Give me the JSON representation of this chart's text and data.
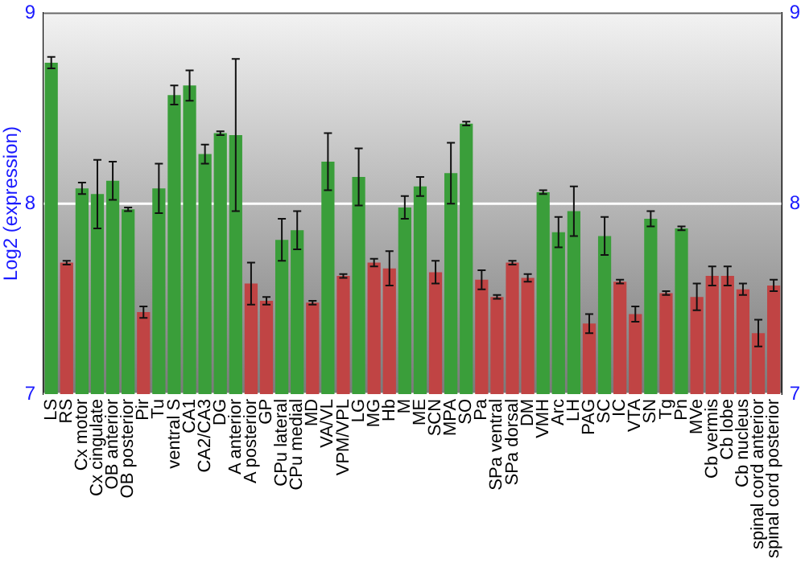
{
  "chart_data": {
    "type": "bar",
    "ylabel": "Log2 (expression)",
    "categories": [
      "LS",
      "RS",
      "Cx motor",
      "Cx cingulate",
      "OB anterior",
      "OB posterior",
      "Pir",
      "Tu",
      "ventral S",
      "CA1",
      "CA2/CA3",
      "DG",
      "A anterior",
      "A posterior",
      "GP",
      "CPu lateral",
      "CPu medial",
      "MD",
      "VA/VL",
      "VPM/VPL",
      "LG",
      "MG",
      "Hb",
      "M",
      "ME",
      "SCN",
      "MPA",
      "SO",
      "Pa",
      "SPa ventral",
      "SPa dorsal",
      "DM",
      "VMH",
      "Arc",
      "LH",
      "PAG",
      "SC",
      "IC",
      "VTA",
      "SN",
      "Tg",
      "Pn",
      "MVe",
      "Cb vermis",
      "Cb lobe",
      "Cb nucleus",
      "spinal cord anterior",
      "spinal cord posterior"
    ],
    "values": [
      8.74,
      7.69,
      8.08,
      8.05,
      8.12,
      7.97,
      7.43,
      8.08,
      8.57,
      8.62,
      8.26,
      8.37,
      8.36,
      7.58,
      7.49,
      7.81,
      7.86,
      7.48,
      8.22,
      7.62,
      8.14,
      7.69,
      7.66,
      7.98,
      8.09,
      7.64,
      8.16,
      8.42,
      7.6,
      7.51,
      7.69,
      7.61,
      8.06,
      7.85,
      7.96,
      7.37,
      7.83,
      7.59,
      7.42,
      7.92,
      7.53,
      7.87,
      7.51,
      7.62,
      7.62,
      7.55,
      7.32,
      7.57
    ],
    "errors": [
      0.03,
      0.01,
      0.03,
      0.18,
      0.1,
      0.01,
      0.03,
      0.13,
      0.05,
      0.08,
      0.05,
      0.01,
      0.4,
      0.11,
      0.02,
      0.11,
      0.1,
      0.01,
      0.15,
      0.01,
      0.15,
      0.02,
      0.09,
      0.06,
      0.05,
      0.06,
      0.16,
      0.01,
      0.05,
      0.01,
      0.01,
      0.02,
      0.01,
      0.08,
      0.13,
      0.05,
      0.1,
      0.01,
      0.04,
      0.04,
      0.01,
      0.01,
      0.07,
      0.05,
      0.05,
      0.03,
      0.07,
      0.03
    ],
    "colors": [
      "#3a9e3a",
      "#c04444",
      "#3a9e3a",
      "#3a9e3a",
      "#3a9e3a",
      "#3a9e3a",
      "#c04444",
      "#3a9e3a",
      "#3a9e3a",
      "#3a9e3a",
      "#3a9e3a",
      "#3a9e3a",
      "#3a9e3a",
      "#c04444",
      "#c04444",
      "#3a9e3a",
      "#3a9e3a",
      "#c04444",
      "#3a9e3a",
      "#c04444",
      "#3a9e3a",
      "#c04444",
      "#c04444",
      "#3a9e3a",
      "#3a9e3a",
      "#c04444",
      "#3a9e3a",
      "#3a9e3a",
      "#c04444",
      "#c04444",
      "#c04444",
      "#c04444",
      "#3a9e3a",
      "#3a9e3a",
      "#3a9e3a",
      "#c04444",
      "#3a9e3a",
      "#c04444",
      "#c04444",
      "#3a9e3a",
      "#c04444",
      "#3a9e3a",
      "#c04444",
      "#c04444",
      "#c04444",
      "#c04444",
      "#c04444",
      "#c04444"
    ],
    "ylim": [
      7,
      9
    ],
    "yticks": [
      7,
      8,
      9
    ],
    "y2lim": [
      7,
      9
    ],
    "y2ticks": [
      7,
      8,
      9
    ],
    "grid": "y"
  }
}
